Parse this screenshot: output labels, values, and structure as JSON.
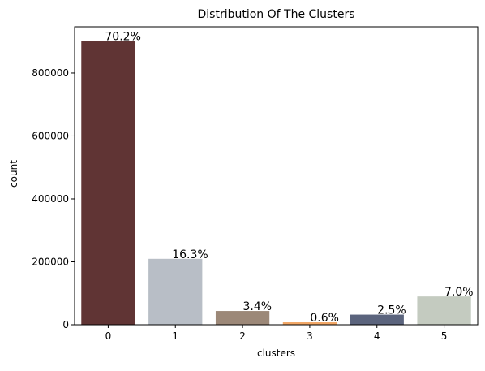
{
  "chart_data": {
    "type": "bar",
    "title": "Distribution Of The Clusters",
    "xlabel": "clusters",
    "ylabel": "count",
    "categories": [
      "0",
      "1",
      "2",
      "3",
      "4",
      "5"
    ],
    "values": [
      902000,
      209500,
      43700,
      7700,
      32100,
      89900
    ],
    "data_labels": [
      "70.2%",
      "16.3%",
      "3.4%",
      "0.6%",
      "2.5%",
      "7.0%"
    ],
    "colors": [
      "#603434",
      "#b8bec6",
      "#9c8878",
      "#f2a766",
      "#5b647d",
      "#c4cbc0"
    ],
    "ylim": [
      0,
      947000
    ],
    "yticks": [
      0,
      200000,
      400000,
      600000,
      800000
    ],
    "ytick_labels": [
      "0",
      "200000",
      "400000",
      "600000",
      "800000"
    ],
    "grid": false,
    "legend": "none"
  }
}
